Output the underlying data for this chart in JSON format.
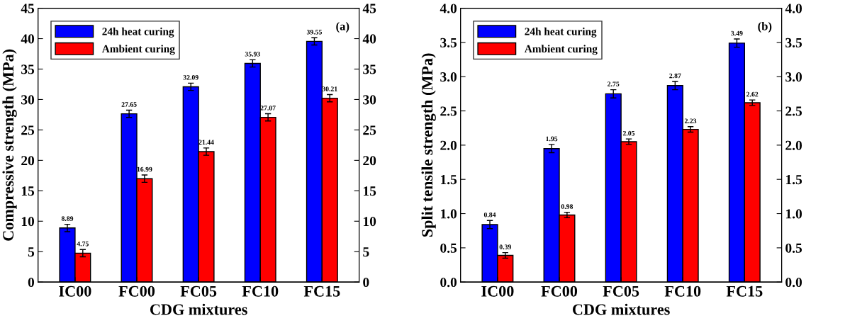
{
  "chart_data": [
    {
      "type": "bar",
      "xlabel": "CDG mixtures",
      "ylabel": "Compressive strength (MPa)",
      "annotations": [
        "(a)"
      ],
      "categories": [
        "IC00",
        "FC00",
        "FC05",
        "FC10",
        "FC15"
      ],
      "series": [
        {
          "name": "24h heat curing",
          "color": "#0000ff",
          "values": [
            8.89,
            27.65,
            32.09,
            35.93,
            39.55
          ],
          "errors": [
            0.6,
            0.6,
            0.6,
            0.6,
            0.6
          ]
        },
        {
          "name": "Ambient curing",
          "color": "#ff0000",
          "values": [
            4.75,
            16.99,
            21.44,
            27.07,
            30.21
          ],
          "errors": [
            0.6,
            0.6,
            0.6,
            0.6,
            0.6
          ]
        }
      ],
      "ylim": [
        0,
        45
      ],
      "yticks": [
        0,
        5,
        10,
        15,
        20,
        25,
        30,
        35,
        40,
        45
      ],
      "y2lim": [
        0,
        45
      ],
      "y2ticks": [
        0,
        5,
        10,
        15,
        20,
        25,
        30,
        35,
        40,
        45
      ],
      "data_labels": true,
      "legend": "top left",
      "grid": false
    },
    {
      "type": "bar",
      "xlabel": "CDG mixtures",
      "ylabel": "Split tensile strength (MPa)",
      "annotations": [
        "(b)"
      ],
      "categories": [
        "IC00",
        "FC00",
        "FC05",
        "FC10",
        "FC15"
      ],
      "series": [
        {
          "name": "24h heat curing",
          "color": "#0000ff",
          "values": [
            0.84,
            1.95,
            2.75,
            2.87,
            3.49
          ],
          "errors": [
            0.06,
            0.06,
            0.06,
            0.06,
            0.06
          ]
        },
        {
          "name": "Ambient curing",
          "color": "#ff0000",
          "values": [
            0.39,
            0.98,
            2.05,
            2.23,
            2.62
          ],
          "errors": [
            0.04,
            0.04,
            0.04,
            0.04,
            0.04
          ]
        }
      ],
      "ylim": [
        0,
        4.0
      ],
      "yticks": [
        {
          "value": 0,
          "label": "0.0"
        },
        {
          "value": 0.5,
          "label": "0.5"
        },
        {
          "value": 1,
          "label": "1.0"
        },
        {
          "value": 1.5,
          "label": "1.5"
        },
        {
          "value": 2,
          "label": "2.0"
        },
        {
          "value": 2.5,
          "label": "2.5"
        },
        {
          "value": 3,
          "label": "3.0"
        },
        {
          "value": 3.5,
          "label": "3.5"
        },
        {
          "value": 4,
          "label": "4.0"
        }
      ],
      "y2lim": [
        0,
        4.0
      ],
      "y2ticks": [
        {
          "value": 0,
          "label": "0.0"
        },
        {
          "value": 0.5,
          "label": "0.5"
        },
        {
          "value": 1,
          "label": "1.0"
        },
        {
          "value": 1.5,
          "label": "1.5"
        },
        {
          "value": 2,
          "label": "2.0"
        },
        {
          "value": 2.5,
          "label": "2.5"
        },
        {
          "value": 3,
          "label": "3.0"
        },
        {
          "value": 3.5,
          "label": "3.5"
        },
        {
          "value": 4,
          "label": "4.0"
        }
      ],
      "data_labels": true,
      "legend": "top left",
      "grid": false
    }
  ]
}
